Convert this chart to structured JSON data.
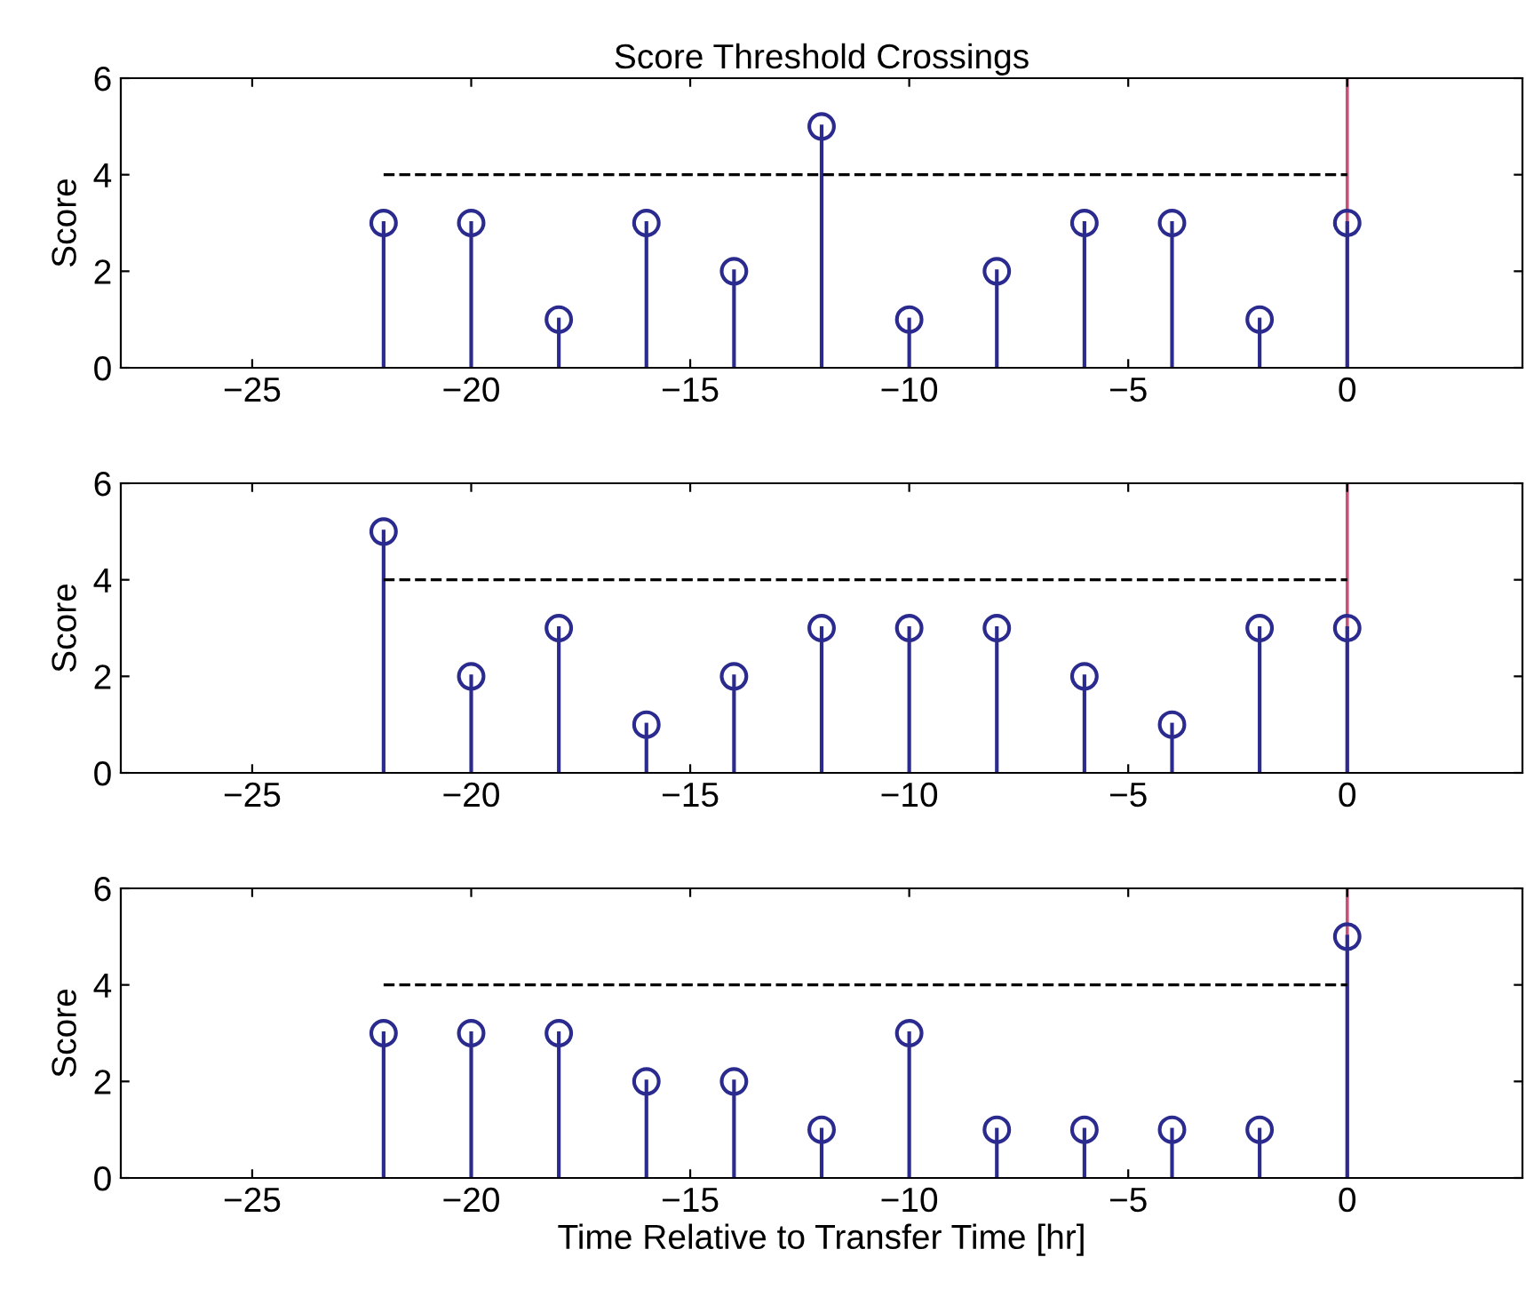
{
  "chart_data": [
    {
      "type": "lollipop",
      "title": "Score Threshold Crossings",
      "ylabel": "Score",
      "xlim": [
        -28,
        4
      ],
      "ylim": [
        0,
        6
      ],
      "xticks": [
        {
          "value": -25,
          "label": "−25"
        },
        {
          "value": -20,
          "label": "−20"
        },
        {
          "value": -15,
          "label": "−15"
        },
        {
          "value": -10,
          "label": "−10"
        },
        {
          "value": -5,
          "label": "−5"
        },
        0
      ],
      "yticks": [
        0,
        2,
        4,
        6
      ],
      "grid": false,
      "marker": "circle",
      "x": [
        -22,
        -20,
        -18,
        -16,
        -14,
        -12,
        -10,
        -8,
        -6,
        -4,
        -2,
        0
      ],
      "series": [
        {
          "type": "lollipop",
          "color": "#2b2b8f",
          "values": [
            3,
            3,
            1,
            3,
            2,
            5,
            1,
            2,
            3,
            3,
            1,
            3
          ]
        },
        {
          "type": "line",
          "color": "#000000",
          "line_style": "dashed",
          "marker": "none",
          "values": [
            4,
            4,
            4,
            4,
            4,
            4,
            4,
            4,
            4,
            4,
            4,
            4
          ]
        }
      ],
      "ref_lines": [
        {
          "axis": "x",
          "value": 0,
          "label": null,
          "color": "#c8507a"
        }
      ]
    },
    {
      "type": "lollipop",
      "ylabel": "Score",
      "xlim": [
        -28,
        4
      ],
      "ylim": [
        0,
        6
      ],
      "xticks": [
        {
          "value": -25,
          "label": "−25"
        },
        {
          "value": -20,
          "label": "−20"
        },
        {
          "value": -15,
          "label": "−15"
        },
        {
          "value": -10,
          "label": "−10"
        },
        {
          "value": -5,
          "label": "−5"
        },
        0
      ],
      "yticks": [
        0,
        2,
        4,
        6
      ],
      "grid": false,
      "marker": "circle",
      "x": [
        -22,
        -20,
        -18,
        -16,
        -14,
        -12,
        -10,
        -8,
        -6,
        -4,
        -2,
        0
      ],
      "series": [
        {
          "type": "lollipop",
          "color": "#2b2b8f",
          "values": [
            5,
            2,
            3,
            1,
            2,
            3,
            3,
            3,
            2,
            1,
            3,
            3
          ]
        },
        {
          "type": "line",
          "color": "#000000",
          "line_style": "dashed",
          "marker": "none",
          "values": [
            4,
            4,
            4,
            4,
            4,
            4,
            4,
            4,
            4,
            4,
            4,
            4
          ]
        }
      ],
      "ref_lines": [
        {
          "axis": "x",
          "value": 0,
          "label": null,
          "color": "#c8507a"
        }
      ]
    },
    {
      "type": "lollipop",
      "ylabel": "Score",
      "xlabel": "Time Relative to Transfer Time [hr]",
      "xlim": [
        -28,
        4
      ],
      "ylim": [
        0,
        6
      ],
      "xticks": [
        {
          "value": -25,
          "label": "−25"
        },
        {
          "value": -20,
          "label": "−20"
        },
        {
          "value": -15,
          "label": "−15"
        },
        {
          "value": -10,
          "label": "−10"
        },
        {
          "value": -5,
          "label": "−5"
        },
        0
      ],
      "yticks": [
        0,
        2,
        4,
        6
      ],
      "grid": false,
      "marker": "circle",
      "x": [
        -22,
        -20,
        -18,
        -16,
        -14,
        -12,
        -10,
        -8,
        -6,
        -4,
        -2,
        0
      ],
      "series": [
        {
          "type": "lollipop",
          "color": "#2b2b8f",
          "values": [
            3,
            3,
            3,
            2,
            2,
            1,
            3,
            1,
            1,
            1,
            1,
            5
          ]
        },
        {
          "type": "line",
          "color": "#000000",
          "line_style": "dashed",
          "marker": "none",
          "values": [
            4,
            4,
            4,
            4,
            4,
            4,
            4,
            4,
            4,
            4,
            4,
            4
          ]
        }
      ],
      "ref_lines": [
        {
          "axis": "x",
          "value": 0,
          "label": null,
          "color": "#c8507a"
        }
      ]
    }
  ]
}
